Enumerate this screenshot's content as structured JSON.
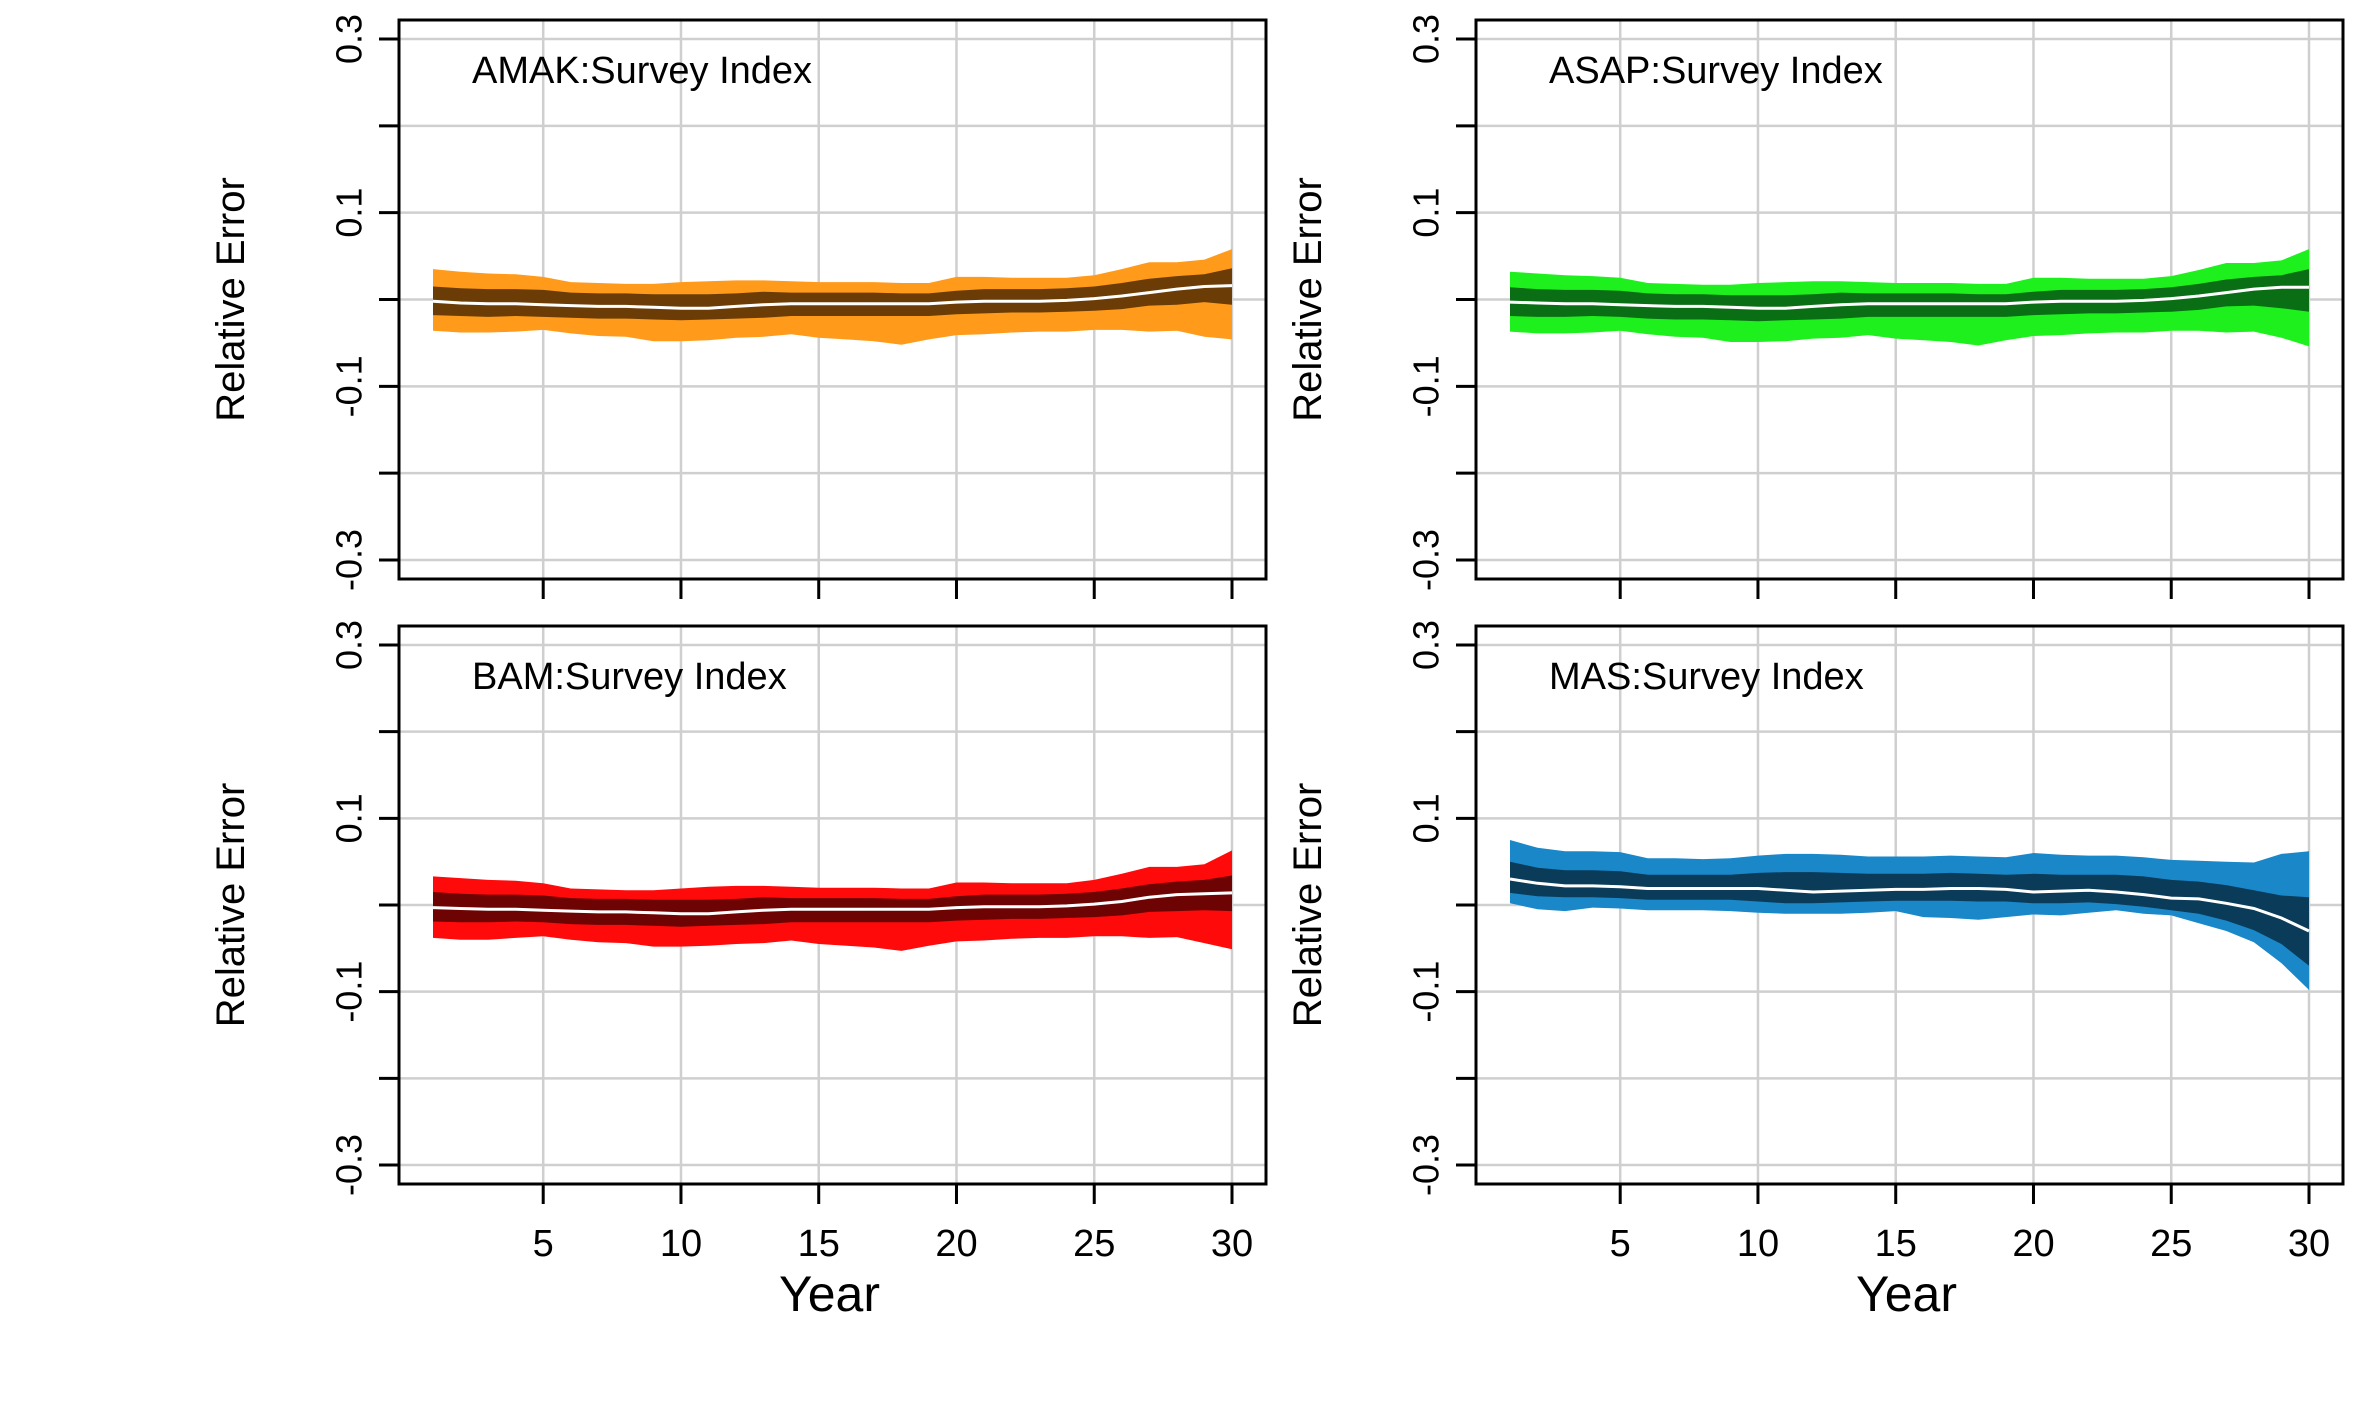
{
  "chart_data": [
    {
      "type": "area",
      "title": "AMAK:Survey Index",
      "xlabel": "",
      "ylabel": "Relative Error",
      "xlim": [
        0,
        31
      ],
      "ylim": [
        -0.3,
        0.3
      ],
      "xticks": [
        5,
        10,
        15,
        20,
        25,
        30
      ],
      "yticks": [
        -0.3,
        -0.1,
        0.1,
        0.3
      ],
      "grid": true,
      "colors": {
        "outer": "#ff9a1a",
        "inner": "#6b3c05",
        "median": "#ffffff"
      },
      "x": [
        1,
        2,
        3,
        4,
        5,
        6,
        7,
        8,
        9,
        10,
        11,
        12,
        13,
        14,
        15,
        16,
        17,
        18,
        19,
        20,
        21,
        22,
        23,
        24,
        25,
        26,
        27,
        28,
        29,
        30
      ],
      "series": [
        {
          "role": "outer_upper",
          "values": [
            0.035,
            0.032,
            0.03,
            0.029,
            0.026,
            0.02,
            0.019,
            0.018,
            0.018,
            0.02,
            0.021,
            0.022,
            0.022,
            0.021,
            0.02,
            0.02,
            0.02,
            0.019,
            0.019,
            0.026,
            0.026,
            0.025,
            0.025,
            0.025,
            0.028,
            0.035,
            0.043,
            0.043,
            0.046,
            0.058
          ]
        },
        {
          "role": "inner_upper",
          "values": [
            0.015,
            0.013,
            0.012,
            0.012,
            0.011,
            0.008,
            0.007,
            0.007,
            0.006,
            0.006,
            0.006,
            0.007,
            0.009,
            0.008,
            0.008,
            0.008,
            0.008,
            0.007,
            0.007,
            0.01,
            0.012,
            0.012,
            0.012,
            0.013,
            0.015,
            0.019,
            0.024,
            0.027,
            0.029,
            0.036
          ]
        },
        {
          "role": "median",
          "values": [
            -0.002,
            -0.004,
            -0.005,
            -0.005,
            -0.006,
            -0.007,
            -0.008,
            -0.008,
            -0.009,
            -0.01,
            -0.01,
            -0.008,
            -0.006,
            -0.005,
            -0.005,
            -0.005,
            -0.005,
            -0.005,
            -0.005,
            -0.003,
            -0.002,
            -0.002,
            -0.002,
            -0.001,
            0.001,
            0.004,
            0.008,
            0.012,
            0.015,
            0.016
          ]
        },
        {
          "role": "inner_lower",
          "values": [
            -0.018,
            -0.019,
            -0.02,
            -0.019,
            -0.02,
            -0.021,
            -0.022,
            -0.022,
            -0.023,
            -0.024,
            -0.023,
            -0.022,
            -0.021,
            -0.019,
            -0.019,
            -0.019,
            -0.019,
            -0.019,
            -0.019,
            -0.017,
            -0.016,
            -0.015,
            -0.015,
            -0.014,
            -0.013,
            -0.011,
            -0.007,
            -0.006,
            -0.003,
            -0.006
          ]
        },
        {
          "role": "outer_lower",
          "values": [
            -0.036,
            -0.038,
            -0.038,
            -0.037,
            -0.035,
            -0.039,
            -0.042,
            -0.043,
            -0.048,
            -0.048,
            -0.047,
            -0.044,
            -0.043,
            -0.04,
            -0.044,
            -0.046,
            -0.048,
            -0.052,
            -0.046,
            -0.041,
            -0.04,
            -0.038,
            -0.037,
            -0.037,
            -0.035,
            -0.035,
            -0.037,
            -0.036,
            -0.043,
            -0.046
          ]
        }
      ]
    },
    {
      "type": "area",
      "title": "ASAP:Survey Index",
      "xlabel": "",
      "ylabel": "Relative Error",
      "xlim": [
        0,
        31
      ],
      "ylim": [
        -0.3,
        0.3
      ],
      "xticks": [
        5,
        10,
        15,
        20,
        25,
        30
      ],
      "yticks": [
        -0.3,
        -0.1,
        0.1,
        0.3
      ],
      "grid": true,
      "colors": {
        "outer": "#1ef01e",
        "inner": "#0a6e14",
        "median": "#ffffff"
      },
      "x": [
        1,
        2,
        3,
        4,
        5,
        6,
        7,
        8,
        9,
        10,
        11,
        12,
        13,
        14,
        15,
        16,
        17,
        18,
        19,
        20,
        21,
        22,
        23,
        24,
        25,
        26,
        27,
        28,
        29,
        30
      ],
      "series": [
        {
          "role": "outer_upper",
          "values": [
            0.032,
            0.03,
            0.028,
            0.027,
            0.025,
            0.019,
            0.018,
            0.017,
            0.017,
            0.019,
            0.02,
            0.021,
            0.021,
            0.02,
            0.019,
            0.019,
            0.019,
            0.018,
            0.018,
            0.025,
            0.025,
            0.024,
            0.024,
            0.024,
            0.027,
            0.034,
            0.042,
            0.042,
            0.045,
            0.058
          ]
        },
        {
          "role": "inner_upper",
          "values": [
            0.014,
            0.012,
            0.011,
            0.011,
            0.01,
            0.007,
            0.006,
            0.006,
            0.005,
            0.005,
            0.005,
            0.006,
            0.008,
            0.007,
            0.007,
            0.007,
            0.007,
            0.006,
            0.006,
            0.009,
            0.011,
            0.011,
            0.011,
            0.012,
            0.014,
            0.018,
            0.023,
            0.026,
            0.028,
            0.035
          ]
        },
        {
          "role": "median",
          "values": [
            -0.003,
            -0.004,
            -0.005,
            -0.005,
            -0.006,
            -0.007,
            -0.008,
            -0.008,
            -0.009,
            -0.01,
            -0.01,
            -0.008,
            -0.006,
            -0.005,
            -0.005,
            -0.005,
            -0.005,
            -0.005,
            -0.005,
            -0.003,
            -0.002,
            -0.002,
            -0.002,
            -0.001,
            0.001,
            0.004,
            0.008,
            0.012,
            0.014,
            0.014
          ]
        },
        {
          "role": "inner_lower",
          "values": [
            -0.019,
            -0.02,
            -0.02,
            -0.019,
            -0.02,
            -0.022,
            -0.023,
            -0.023,
            -0.024,
            -0.025,
            -0.024,
            -0.023,
            -0.022,
            -0.02,
            -0.02,
            -0.02,
            -0.02,
            -0.02,
            -0.02,
            -0.018,
            -0.017,
            -0.016,
            -0.016,
            -0.015,
            -0.014,
            -0.012,
            -0.008,
            -0.007,
            -0.01,
            -0.014
          ]
        },
        {
          "role": "outer_lower",
          "values": [
            -0.037,
            -0.039,
            -0.039,
            -0.038,
            -0.036,
            -0.04,
            -0.043,
            -0.044,
            -0.049,
            -0.049,
            -0.048,
            -0.045,
            -0.044,
            -0.041,
            -0.045,
            -0.047,
            -0.049,
            -0.053,
            -0.047,
            -0.042,
            -0.041,
            -0.039,
            -0.038,
            -0.038,
            -0.036,
            -0.036,
            -0.038,
            -0.037,
            -0.044,
            -0.054
          ]
        }
      ]
    },
    {
      "type": "area",
      "title": "BAM:Survey Index",
      "xlabel": "Year",
      "ylabel": "Relative Error",
      "xlim": [
        0,
        31
      ],
      "ylim": [
        -0.3,
        0.3
      ],
      "xticks": [
        5,
        10,
        15,
        20,
        25,
        30
      ],
      "yticks": [
        -0.3,
        -0.1,
        0.1,
        0.3
      ],
      "grid": true,
      "colors": {
        "outer": "#fe0a0a",
        "inner": "#6e0303",
        "median": "#ffffff"
      },
      "x": [
        1,
        2,
        3,
        4,
        5,
        6,
        7,
        8,
        9,
        10,
        11,
        12,
        13,
        14,
        15,
        16,
        17,
        18,
        19,
        20,
        21,
        22,
        23,
        24,
        25,
        26,
        27,
        28,
        29,
        30
      ],
      "series": [
        {
          "role": "outer_upper",
          "values": [
            0.033,
            0.031,
            0.029,
            0.028,
            0.025,
            0.019,
            0.018,
            0.017,
            0.017,
            0.019,
            0.021,
            0.022,
            0.022,
            0.021,
            0.02,
            0.02,
            0.02,
            0.019,
            0.019,
            0.026,
            0.026,
            0.025,
            0.025,
            0.025,
            0.029,
            0.036,
            0.044,
            0.044,
            0.047,
            0.063
          ]
        },
        {
          "role": "inner_upper",
          "values": [
            0.015,
            0.013,
            0.012,
            0.012,
            0.011,
            0.008,
            0.007,
            0.007,
            0.006,
            0.006,
            0.006,
            0.007,
            0.009,
            0.008,
            0.008,
            0.008,
            0.008,
            0.007,
            0.007,
            0.01,
            0.012,
            0.012,
            0.012,
            0.013,
            0.015,
            0.019,
            0.024,
            0.027,
            0.029,
            0.034
          ]
        },
        {
          "role": "median",
          "values": [
            -0.003,
            -0.004,
            -0.005,
            -0.005,
            -0.006,
            -0.007,
            -0.008,
            -0.008,
            -0.009,
            -0.01,
            -0.01,
            -0.008,
            -0.006,
            -0.005,
            -0.005,
            -0.005,
            -0.005,
            -0.005,
            -0.005,
            -0.003,
            -0.002,
            -0.002,
            -0.002,
            -0.001,
            0.001,
            0.004,
            0.009,
            0.012,
            0.013,
            0.014
          ]
        },
        {
          "role": "inner_lower",
          "values": [
            -0.019,
            -0.02,
            -0.02,
            -0.019,
            -0.02,
            -0.022,
            -0.023,
            -0.023,
            -0.024,
            -0.025,
            -0.024,
            -0.023,
            -0.022,
            -0.02,
            -0.02,
            -0.02,
            -0.02,
            -0.02,
            -0.02,
            -0.018,
            -0.017,
            -0.016,
            -0.016,
            -0.015,
            -0.014,
            -0.012,
            -0.008,
            -0.007,
            -0.006,
            -0.007
          ]
        },
        {
          "role": "outer_lower",
          "values": [
            -0.038,
            -0.04,
            -0.04,
            -0.038,
            -0.036,
            -0.04,
            -0.043,
            -0.044,
            -0.048,
            -0.048,
            -0.047,
            -0.045,
            -0.044,
            -0.041,
            -0.045,
            -0.047,
            -0.049,
            -0.053,
            -0.047,
            -0.042,
            -0.041,
            -0.039,
            -0.038,
            -0.038,
            -0.036,
            -0.036,
            -0.038,
            -0.037,
            -0.044,
            -0.051
          ]
        }
      ]
    },
    {
      "type": "area",
      "title": "MAS:Survey Index",
      "xlabel": "Year",
      "ylabel": "Relative Error",
      "xlim": [
        0,
        31
      ],
      "ylim": [
        -0.3,
        0.3
      ],
      "xticks": [
        5,
        10,
        15,
        20,
        25,
        30
      ],
      "yticks": [
        -0.3,
        -0.1,
        0.1,
        0.3
      ],
      "grid": true,
      "colors": {
        "outer": "#1a87c9",
        "inner": "#0a3b58",
        "median": "#ffffff"
      },
      "x": [
        1,
        2,
        3,
        4,
        5,
        6,
        7,
        8,
        9,
        10,
        11,
        12,
        13,
        14,
        15,
        16,
        17,
        18,
        19,
        20,
        21,
        22,
        23,
        24,
        25,
        26,
        27,
        28,
        29,
        30
      ],
      "series": [
        {
          "role": "outer_upper",
          "values": [
            0.075,
            0.066,
            0.062,
            0.062,
            0.061,
            0.054,
            0.054,
            0.053,
            0.054,
            0.057,
            0.059,
            0.059,
            0.058,
            0.056,
            0.056,
            0.056,
            0.057,
            0.056,
            0.055,
            0.06,
            0.058,
            0.057,
            0.057,
            0.055,
            0.052,
            0.051,
            0.05,
            0.049,
            0.059,
            0.062
          ]
        },
        {
          "role": "inner_upper",
          "values": [
            0.05,
            0.043,
            0.04,
            0.04,
            0.039,
            0.035,
            0.035,
            0.035,
            0.035,
            0.037,
            0.038,
            0.038,
            0.037,
            0.036,
            0.036,
            0.036,
            0.037,
            0.036,
            0.035,
            0.036,
            0.035,
            0.035,
            0.035,
            0.033,
            0.029,
            0.027,
            0.023,
            0.017,
            0.011,
            0.009
          ]
        },
        {
          "role": "median",
          "values": [
            0.03,
            0.025,
            0.022,
            0.022,
            0.021,
            0.019,
            0.019,
            0.019,
            0.019,
            0.019,
            0.017,
            0.015,
            0.016,
            0.017,
            0.018,
            0.018,
            0.019,
            0.019,
            0.018,
            0.015,
            0.016,
            0.017,
            0.015,
            0.012,
            0.008,
            0.007,
            0.002,
            -0.004,
            -0.015,
            -0.03
          ]
        },
        {
          "role": "inner_lower",
          "values": [
            0.014,
            0.01,
            0.009,
            0.009,
            0.008,
            0.006,
            0.006,
            0.006,
            0.006,
            0.004,
            0.002,
            0.002,
            0.003,
            0.004,
            0.005,
            0.005,
            0.005,
            0.004,
            0.004,
            0.002,
            0.002,
            0.003,
            0.001,
            -0.002,
            -0.006,
            -0.01,
            -0.018,
            -0.029,
            -0.045,
            -0.07
          ]
        },
        {
          "role": "outer_lower",
          "values": [
            0.002,
            -0.005,
            -0.007,
            -0.003,
            -0.004,
            -0.006,
            -0.006,
            -0.006,
            -0.007,
            -0.009,
            -0.01,
            -0.01,
            -0.01,
            -0.009,
            -0.007,
            -0.014,
            -0.015,
            -0.017,
            -0.014,
            -0.011,
            -0.012,
            -0.009,
            -0.006,
            -0.01,
            -0.012,
            -0.021,
            -0.03,
            -0.043,
            -0.067,
            -0.098
          ]
        }
      ]
    }
  ]
}
